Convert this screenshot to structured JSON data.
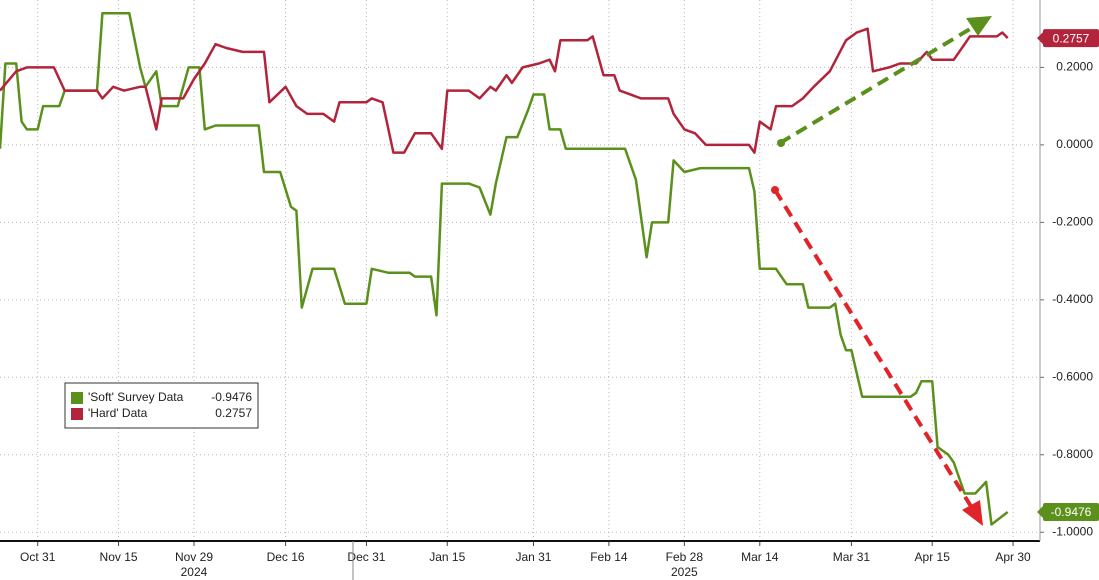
{
  "chart_data": {
    "type": "line",
    "xlim": [
      "2024-10-24",
      "2025-05-05"
    ],
    "ylim": [
      -1.02,
      0.374
    ],
    "xticks": [
      {
        "value": "2024-10-31",
        "label": "Oct 31"
      },
      {
        "value": "2024-11-15",
        "label": "Nov 15"
      },
      {
        "value": "2024-11-29",
        "label": "Nov 29"
      },
      {
        "value": "2024-12-16",
        "label": "Dec 16"
      },
      {
        "value": "2024-12-31",
        "label": "Dec 31"
      },
      {
        "value": "2025-01-15",
        "label": "Jan 15"
      },
      {
        "value": "2025-01-31",
        "label": "Jan 31"
      },
      {
        "value": "2025-02-14",
        "label": "Feb 14"
      },
      {
        "value": "2025-02-28",
        "label": "Feb 28"
      },
      {
        "value": "2025-03-14",
        "label": "Mar 14"
      },
      {
        "value": "2025-03-31",
        "label": "Mar 31"
      },
      {
        "value": "2025-04-15",
        "label": "Apr 15"
      },
      {
        "value": "2025-04-30",
        "label": "Apr 30"
      }
    ],
    "year_labels": [
      {
        "value": "2024-11-29",
        "label": "2024"
      },
      {
        "value": "2025-02-28",
        "label": "2025"
      }
    ],
    "yticks": [
      {
        "value": 0.2,
        "label": "0.2000"
      },
      {
        "value": 0,
        "label": "0.0000"
      },
      {
        "value": -0.2,
        "label": "-0.2000"
      },
      {
        "value": -0.4,
        "label": "-0.4000"
      },
      {
        "value": -0.6,
        "label": "-0.6000"
      },
      {
        "value": -0.8,
        "label": "-0.8000"
      },
      {
        "value": -1,
        "label": "-1.0000"
      }
    ],
    "grid": true,
    "legend": "lower-left",
    "series": [
      {
        "name": "'Soft' Survey Data",
        "color": "#5b901c",
        "x": [
          "2024-10-24",
          "2024-10-25",
          "2024-10-27",
          "2024-10-28",
          "2024-10-29",
          "2024-10-31",
          "2024-11-01",
          "2024-11-04",
          "2024-11-05",
          "2024-11-11",
          "2024-11-12",
          "2024-11-17",
          "2024-11-19",
          "2024-11-20",
          "2024-11-22",
          "2024-11-23",
          "2024-11-26",
          "2024-11-28",
          "2024-11-30",
          "2024-12-01",
          "2024-12-03",
          "2024-12-11",
          "2024-12-12",
          "2024-12-15",
          "2024-12-17",
          "2024-12-18",
          "2024-12-19",
          "2024-12-21",
          "2024-12-25",
          "2024-12-27",
          "2024-12-31",
          "2025-01-01",
          "2025-01-04",
          "2025-01-08",
          "2025-01-09",
          "2025-01-12",
          "2025-01-13",
          "2025-01-14",
          "2025-01-19",
          "2025-01-21",
          "2025-01-23",
          "2025-01-24",
          "2025-01-26",
          "2025-01-28",
          "2025-01-30",
          "2025-01-31",
          "2025-02-02",
          "2025-02-03",
          "2025-02-05",
          "2025-02-06",
          "2025-02-17",
          "2025-02-19",
          "2025-02-21",
          "2025-02-22",
          "2025-02-25",
          "2025-02-26",
          "2025-02-28",
          "2025-03-03",
          "2025-03-12",
          "2025-03-13",
          "2025-03-14",
          "2025-03-17",
          "2025-03-18",
          "2025-03-19",
          "2025-03-22",
          "2025-03-23",
          "2025-03-27",
          "2025-03-28",
          "2025-03-29",
          "2025-03-30",
          "2025-03-31",
          "2025-04-02",
          "2025-04-11",
          "2025-04-12",
          "2025-04-13",
          "2025-04-15",
          "2025-04-16",
          "2025-04-18",
          "2025-04-19",
          "2025-04-21",
          "2025-04-23",
          "2025-04-25",
          "2025-04-26",
          "2025-04-29"
        ],
        "values": [
          -0.01,
          0.21,
          0.21,
          0.06,
          0.04,
          0.04,
          0.1,
          0.1,
          0.14,
          0.14,
          0.34,
          0.34,
          0.2,
          0.15,
          0.19,
          0.1,
          0.1,
          0.2,
          0.2,
          0.04,
          0.05,
          0.05,
          -0.07,
          -0.07,
          -0.16,
          -0.17,
          -0.42,
          -0.32,
          -0.32,
          -0.41,
          -0.41,
          -0.32,
          -0.33,
          -0.33,
          -0.34,
          -0.34,
          -0.44,
          -0.1,
          -0.1,
          -0.11,
          -0.18,
          -0.1,
          0.02,
          0.02,
          0.09,
          0.13,
          0.13,
          0.04,
          0.04,
          -0.01,
          -0.01,
          -0.09,
          -0.29,
          -0.2,
          -0.2,
          -0.04,
          -0.07,
          -0.06,
          -0.06,
          -0.12,
          -0.32,
          -0.32,
          -0.34,
          -0.36,
          -0.36,
          -0.42,
          -0.42,
          -0.41,
          -0.49,
          -0.53,
          -0.53,
          -0.65,
          -0.65,
          -0.64,
          -0.61,
          -0.61,
          -0.78,
          -0.8,
          -0.82,
          -0.9,
          -0.9,
          -0.87,
          -0.98,
          -0.9476
        ]
      },
      {
        "name": "'Hard' Data",
        "color": "#b2243b",
        "x": [
          "2024-10-24",
          "2024-10-27",
          "2024-10-29",
          "2024-11-03",
          "2024-11-05",
          "2024-11-11",
          "2024-11-12",
          "2024-11-14",
          "2024-11-16",
          "2024-11-19",
          "2024-11-20",
          "2024-11-22",
          "2024-11-23",
          "2024-11-27",
          "2024-11-29",
          "2024-12-01",
          "2024-12-03",
          "2024-12-05",
          "2024-12-08",
          "2024-12-12",
          "2024-12-13",
          "2024-12-16",
          "2024-12-18",
          "2024-12-20",
          "2024-12-23",
          "2024-12-25",
          "2024-12-26",
          "2024-12-31",
          "2025-01-01",
          "2025-01-03",
          "2025-01-05",
          "2025-01-07",
          "2025-01-09",
          "2025-01-12",
          "2025-01-14",
          "2025-01-15",
          "2025-01-19",
          "2025-01-21",
          "2025-01-23",
          "2025-01-24",
          "2025-01-26",
          "2025-01-27",
          "2025-01-29",
          "2025-02-01",
          "2025-02-03",
          "2025-02-04",
          "2025-02-05",
          "2025-02-10",
          "2025-02-11",
          "2025-02-13",
          "2025-02-15",
          "2025-02-16",
          "2025-02-20",
          "2025-02-25",
          "2025-02-26",
          "2025-02-28",
          "2025-03-02",
          "2025-03-04",
          "2025-03-12",
          "2025-03-13",
          "2025-03-14",
          "2025-03-16",
          "2025-03-17",
          "2025-03-20",
          "2025-03-22",
          "2025-03-24",
          "2025-03-27",
          "2025-03-30",
          "2025-04-01",
          "2025-04-03",
          "2025-04-04",
          "2025-04-07",
          "2025-04-09",
          "2025-04-12",
          "2025-04-14",
          "2025-04-15",
          "2025-04-19",
          "2025-04-22",
          "2025-04-27",
          "2025-04-28",
          "2025-04-29"
        ],
        "values": [
          0.14,
          0.19,
          0.2,
          0.2,
          0.14,
          0.14,
          0.12,
          0.15,
          0.14,
          0.15,
          0.15,
          0.04,
          0.12,
          0.12,
          0.17,
          0.21,
          0.26,
          0.25,
          0.24,
          0.24,
          0.11,
          0.15,
          0.1,
          0.08,
          0.08,
          0.06,
          0.11,
          0.11,
          0.12,
          0.11,
          -0.02,
          -0.02,
          0.03,
          0.03,
          -0.01,
          0.14,
          0.14,
          0.12,
          0.15,
          0.14,
          0.18,
          0.16,
          0.2,
          0.21,
          0.22,
          0.19,
          0.27,
          0.27,
          0.28,
          0.18,
          0.18,
          0.14,
          0.12,
          0.12,
          0.08,
          0.04,
          0.03,
          0,
          0,
          -0.02,
          0.06,
          0.04,
          0.1,
          0.1,
          0.12,
          0.15,
          0.19,
          0.27,
          0.29,
          0.3,
          0.19,
          0.2,
          0.21,
          0.21,
          0.24,
          0.22,
          0.22,
          0.28,
          0.28,
          0.29,
          0.2757
        ]
      }
    ]
  }
}
